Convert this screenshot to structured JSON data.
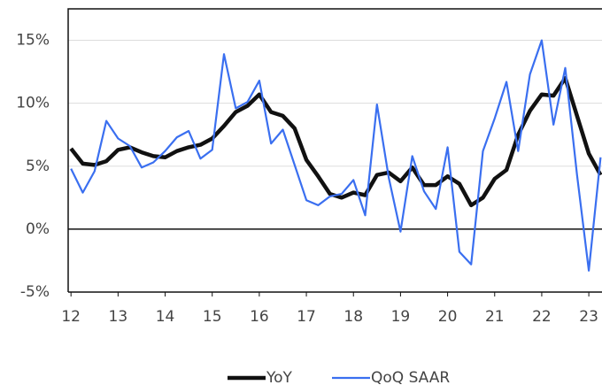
{
  "chart_data": {
    "type": "line",
    "x": [
      12,
      12.25,
      12.5,
      12.75,
      13,
      13.25,
      13.5,
      13.75,
      14,
      14.25,
      14.5,
      14.75,
      15,
      15.25,
      15.5,
      15.75,
      16,
      16.25,
      16.5,
      16.75,
      17,
      17.25,
      17.5,
      17.75,
      18,
      18.25,
      18.5,
      18.75,
      19,
      19.25,
      19.5,
      19.75,
      20,
      20.25,
      20.5,
      20.75,
      21,
      21.25,
      21.5,
      21.75,
      22,
      22.25,
      22.5,
      22.75,
      23,
      23.25
    ],
    "series": [
      {
        "name": "YoY",
        "color": "#111111",
        "values": [
          6.4,
          5.2,
          5.1,
          5.4,
          6.3,
          6.5,
          6.1,
          5.8,
          5.7,
          6.2,
          6.5,
          6.7,
          7.2,
          8.2,
          9.3,
          9.8,
          10.7,
          9.3,
          9.0,
          8.0,
          5.5,
          4.2,
          2.8,
          2.5,
          2.9,
          2.7,
          4.3,
          4.5,
          3.8,
          4.9,
          3.5,
          3.5,
          4.2,
          3.6,
          1.9,
          2.5,
          4.0,
          4.7,
          7.5,
          9.4,
          10.7,
          10.6,
          12.0,
          9.0,
          6.0,
          4.3
        ]
      },
      {
        "name": "QoQ SAAR",
        "color": "#3a6ff0",
        "values": [
          4.8,
          2.9,
          4.6,
          8.6,
          7.2,
          6.6,
          4.9,
          5.3,
          6.2,
          7.3,
          7.8,
          5.6,
          6.3,
          13.9,
          9.6,
          10.1,
          11.8,
          6.8,
          7.9,
          5.1,
          2.3,
          1.9,
          2.6,
          2.8,
          3.9,
          1.1,
          9.9,
          4.1,
          -0.2,
          5.8,
          3.0,
          1.6,
          6.5,
          -1.8,
          -2.8,
          6.2,
          8.8,
          11.7,
          6.2,
          12.3,
          15.0,
          8.3,
          12.8,
          4.3,
          -3.3,
          5.7
        ]
      }
    ],
    "xlim": [
      11.94,
      23.28
    ],
    "xticks": [
      12,
      13,
      14,
      15,
      16,
      17,
      18,
      19,
      20,
      21,
      22,
      23
    ],
    "ylim": [
      -5,
      17.5
    ],
    "yticks": [
      {
        "value": -5,
        "label": "-5%"
      },
      {
        "value": 0,
        "label": "0%"
      },
      {
        "value": 5,
        "label": "5%"
      },
      {
        "value": 10,
        "label": "10%"
      },
      {
        "value": 15,
        "label": "15%"
      }
    ],
    "grid": true,
    "legend": "bottom"
  }
}
